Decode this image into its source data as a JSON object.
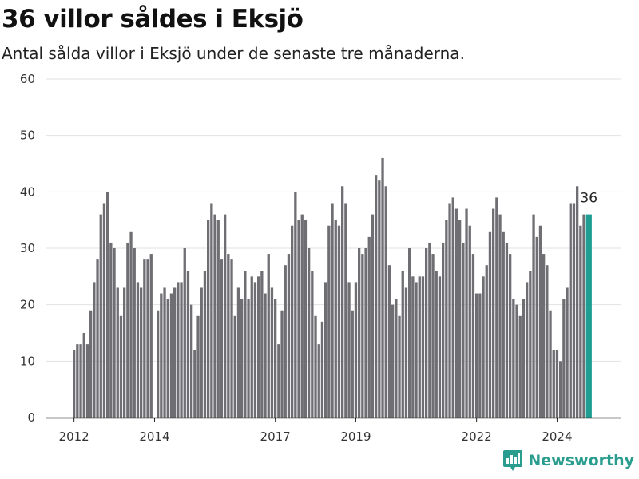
{
  "chart_data": {
    "type": "bar",
    "title": "36 villor såldes i Eksjö",
    "subtitle": "Antal sålda villor i Eksjö under de senaste tre månaderna.",
    "xlabel": "",
    "ylabel": "",
    "ylim": [
      0,
      60
    ],
    "yticks": [
      "0",
      "10",
      "20",
      "30",
      "40",
      "50",
      "60"
    ],
    "xticks": [
      "2012",
      "2014",
      "2017",
      "2019",
      "2022",
      "2024"
    ],
    "grid": true,
    "legend": "none",
    "colors": {
      "bar": "#6e6e73",
      "highlight": "#1f9e93",
      "grid": "#e2e2e2",
      "axis": "#222222"
    },
    "highlight_label": "36",
    "values": [
      12,
      13,
      13,
      15,
      13,
      19,
      24,
      28,
      36,
      38,
      40,
      31,
      30,
      23,
      18,
      23,
      31,
      33,
      30,
      24,
      23,
      28,
      28,
      29,
      null,
      19,
      22,
      23,
      21,
      22,
      23,
      24,
      24,
      30,
      26,
      20,
      12,
      18,
      23,
      26,
      35,
      38,
      36,
      35,
      28,
      36,
      29,
      28,
      18,
      23,
      21,
      26,
      21,
      25,
      24,
      25,
      26,
      22,
      29,
      23,
      21,
      13,
      19,
      27,
      29,
      34,
      40,
      35,
      36,
      35,
      30,
      26,
      18,
      13,
      17,
      24,
      34,
      38,
      35,
      34,
      41,
      38,
      24,
      19,
      24,
      30,
      29,
      30,
      32,
      36,
      43,
      42,
      46,
      41,
      27,
      20,
      21,
      18,
      26,
      23,
      30,
      25,
      24,
      25,
      25,
      30,
      31,
      29,
      26,
      25,
      31,
      35,
      38,
      39,
      37,
      35,
      31,
      37,
      34,
      29,
      22,
      22,
      25,
      27,
      33,
      37,
      39,
      36,
      33,
      31,
      29,
      21,
      20,
      18,
      21,
      24,
      26,
      36,
      32,
      34,
      29,
      27,
      19,
      12,
      12,
      10,
      21,
      23,
      38,
      38,
      41,
      34,
      36,
      36
    ]
  },
  "brand": {
    "name": "Newsworthy",
    "icon": "bar-chart-logo-icon"
  }
}
